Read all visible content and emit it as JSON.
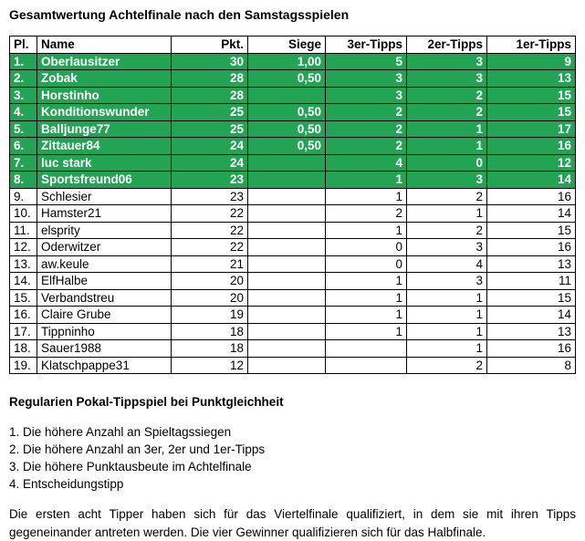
{
  "title": "Gesamtwertung Achtelfinale nach den Samstagsspielen",
  "colors": {
    "highlight_green": "#22A454",
    "highlight_text": "#FFFFFF",
    "border": "#000000"
  },
  "table": {
    "columns": [
      "Pl.",
      "Name",
      "Pkt.",
      "Siege",
      "3er-Tipps",
      "2er-Tipps",
      "1er-Tipps"
    ],
    "rows": [
      {
        "pl": "1.",
        "name": "Oberlausitzer",
        "pkt": "30",
        "siege": "1,00",
        "t3": "5",
        "t2": "3",
        "t1": "9",
        "highlight": true
      },
      {
        "pl": "2.",
        "name": "Zobak",
        "pkt": "28",
        "siege": "0,50",
        "t3": "3",
        "t2": "3",
        "t1": "13",
        "highlight": true
      },
      {
        "pl": "3.",
        "name": "Horstinho",
        "pkt": "28",
        "siege": "",
        "t3": "3",
        "t2": "2",
        "t1": "15",
        "highlight": true
      },
      {
        "pl": "4.",
        "name": "Konditionswunder",
        "pkt": "25",
        "siege": "0,50",
        "t3": "2",
        "t2": "2",
        "t1": "15",
        "highlight": true
      },
      {
        "pl": "5.",
        "name": "Balljunge77",
        "pkt": "25",
        "siege": "0,50",
        "t3": "2",
        "t2": "1",
        "t1": "17",
        "highlight": true
      },
      {
        "pl": "6.",
        "name": "Zittauer84",
        "pkt": "24",
        "siege": "0,50",
        "t3": "2",
        "t2": "1",
        "t1": "16",
        "highlight": true
      },
      {
        "pl": "7.",
        "name": "luc stark",
        "pkt": "24",
        "siege": "",
        "t3": "4",
        "t2": "0",
        "t1": "12",
        "highlight": true
      },
      {
        "pl": "8.",
        "name": "Sportsfreund06",
        "pkt": "23",
        "siege": "",
        "t3": "1",
        "t2": "3",
        "t1": "14",
        "highlight": true
      },
      {
        "pl": "9.",
        "name": "Schlesier",
        "pkt": "23",
        "siege": "",
        "t3": "1",
        "t2": "2",
        "t1": "16",
        "highlight": false
      },
      {
        "pl": "10.",
        "name": "Hamster21",
        "pkt": "22",
        "siege": "",
        "t3": "2",
        "t2": "1",
        "t1": "14",
        "highlight": false
      },
      {
        "pl": "11.",
        "name": "elsprity",
        "pkt": "22",
        "siege": "",
        "t3": "1",
        "t2": "2",
        "t1": "15",
        "highlight": false
      },
      {
        "pl": "12.",
        "name": "Oderwitzer",
        "pkt": "22",
        "siege": "",
        "t3": "0",
        "t2": "3",
        "t1": "16",
        "highlight": false
      },
      {
        "pl": "13.",
        "name": "aw.keule",
        "pkt": "21",
        "siege": "",
        "t3": "0",
        "t2": "4",
        "t1": "13",
        "highlight": false
      },
      {
        "pl": "14.",
        "name": "ElfHalbe",
        "pkt": "20",
        "siege": "",
        "t3": "1",
        "t2": "3",
        "t1": "11",
        "highlight": false
      },
      {
        "pl": "15.",
        "name": "Verbandstreu",
        "pkt": "20",
        "siege": "",
        "t3": "1",
        "t2": "1",
        "t1": "15",
        "highlight": false
      },
      {
        "pl": "16.",
        "name": "Claire Grube",
        "pkt": "19",
        "siege": "",
        "t3": "1",
        "t2": "1",
        "t1": "14",
        "highlight": false
      },
      {
        "pl": "17.",
        "name": "Tippninho",
        "pkt": "18",
        "siege": "",
        "t3": "1",
        "t2": "1",
        "t1": "13",
        "highlight": false
      },
      {
        "pl": "18.",
        "name": "Sauer1988",
        "pkt": "18",
        "siege": "",
        "t3": "",
        "t2": "1",
        "t1": "16",
        "highlight": false
      },
      {
        "pl": "19.",
        "name": "Klatschpappe31",
        "pkt": "12",
        "siege": "",
        "t3": "",
        "t2": "2",
        "t1": "8",
        "highlight": false
      }
    ]
  },
  "rules": {
    "heading": "Regularien Pokal-Tippspiel bei Punktgleichheit",
    "items": [
      "1. Die höhere Anzahl an Spieltagssiegen",
      "2. Die höhere Anzahl an 3er, 2er und 1er-Tipps",
      "3. Die höhere Punktausbeute im Achtelfinale",
      "4. Entscheidungstipp"
    ]
  },
  "footer_paragraph": "Die ersten acht Tipper haben sich für das Viertelfinale qualifiziert, in dem sie mit ihren Tipps gegeneinander antreten werden. Die vier Gewinner qualifizieren sich für das Halbfinale."
}
